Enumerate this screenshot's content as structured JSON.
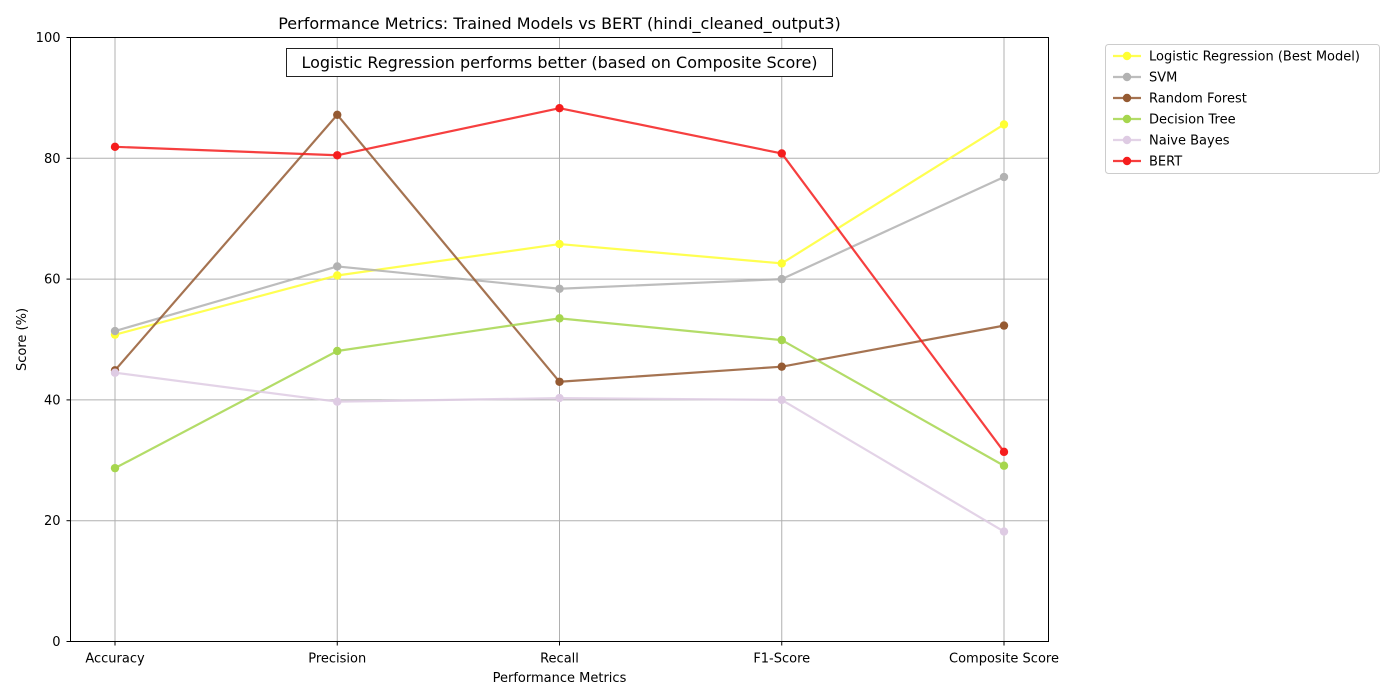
{
  "chart_data": {
    "type": "line",
    "title": "Performance Metrics: Trained Models vs BERT (hindi_cleaned_output3)",
    "xlabel": "Performance Metrics",
    "ylabel": "Score (%)",
    "categories": [
      "Accuracy",
      "Precision",
      "Recall",
      "F1-Score",
      "Composite Score"
    ],
    "ylim": [
      0,
      100
    ],
    "yticks": [
      0,
      20,
      40,
      60,
      80,
      100
    ],
    "grid": true,
    "legend_position": "outside-top-right",
    "annotation": "Logistic Regression performs better (based on Composite Score)",
    "series": [
      {
        "name": "Logistic Regression (Best Model)",
        "color": "#ffff33",
        "values": [
          50.8,
          60.6,
          65.8,
          62.6,
          85.6
        ]
      },
      {
        "name": "SVM",
        "color": "#b2b2b2",
        "values": [
          51.4,
          62.1,
          58.4,
          60.0,
          76.9
        ]
      },
      {
        "name": "Random Forest",
        "color": "#955a32",
        "values": [
          44.9,
          87.2,
          43.0,
          45.5,
          52.3
        ]
      },
      {
        "name": "Decision Tree",
        "color": "#a6d64e",
        "values": [
          28.7,
          48.1,
          53.5,
          49.9,
          29.1
        ]
      },
      {
        "name": "Naive Bayes",
        "color": "#decbe3",
        "values": [
          44.5,
          39.7,
          40.3,
          40.0,
          18.2
        ]
      },
      {
        "name": "BERT",
        "color": "#f51d1d",
        "values": [
          81.9,
          80.5,
          88.3,
          80.8,
          31.4
        ]
      }
    ]
  }
}
